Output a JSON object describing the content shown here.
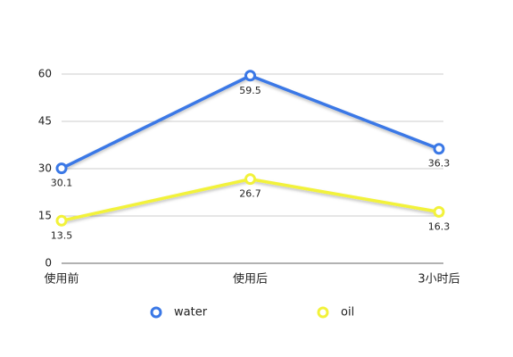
{
  "chart_data": {
    "type": "line",
    "categories": [
      "使用前",
      "使用后",
      "3小时后"
    ],
    "series": [
      {
        "name": "water",
        "color": "#3a78e6",
        "values": [
          30.1,
          59.5,
          36.3
        ]
      },
      {
        "name": "oil",
        "color": "#f2f23a",
        "values": [
          13.5,
          26.7,
          16.3
        ]
      }
    ],
    "ylim": [
      0,
      60
    ],
    "yticks": [
      0,
      15,
      30,
      45,
      60
    ],
    "grid": true,
    "legend": "bottom",
    "value_labels_shown": true
  }
}
